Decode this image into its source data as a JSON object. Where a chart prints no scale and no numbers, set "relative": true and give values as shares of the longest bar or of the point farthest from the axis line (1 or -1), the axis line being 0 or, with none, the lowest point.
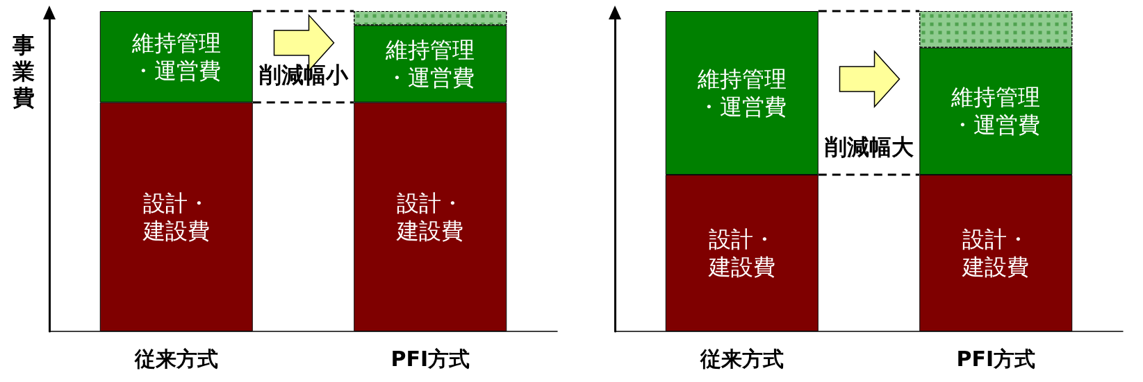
{
  "chart_data": [
    {
      "type": "bar",
      "ylabel": "事業費",
      "categories": [
        "従来方式",
        "PFI方式"
      ],
      "stacked": true,
      "relative": true,
      "grid": false,
      "legend": false,
      "series": [
        {
          "name": "設計・建設費",
          "color": "#7f0000",
          "values": [
            0.715,
            0.715
          ]
        },
        {
          "name": "維持管理・運営費",
          "color": "#008000",
          "values": [
            0.285,
            0.241
          ]
        },
        {
          "color": "#90cc90",
          "values": [
            null,
            0.044
          ]
        }
      ],
      "annotations": [
        "削減幅小"
      ]
    },
    {
      "type": "bar",
      "categories": [
        "従来方式",
        "PFI方式"
      ],
      "stacked": true,
      "relative": true,
      "grid": false,
      "legend": false,
      "series": [
        {
          "name": "設計・建設費",
          "color": "#7f0000",
          "values": [
            0.489,
            0.489
          ]
        },
        {
          "name": "維持管理・運営費",
          "color": "#008000",
          "values": [
            0.511,
            0.397
          ]
        },
        {
          "color": "#90cc90",
          "values": [
            null,
            0.114
          ]
        }
      ],
      "annotations": [
        "削減幅大"
      ]
    }
  ]
}
